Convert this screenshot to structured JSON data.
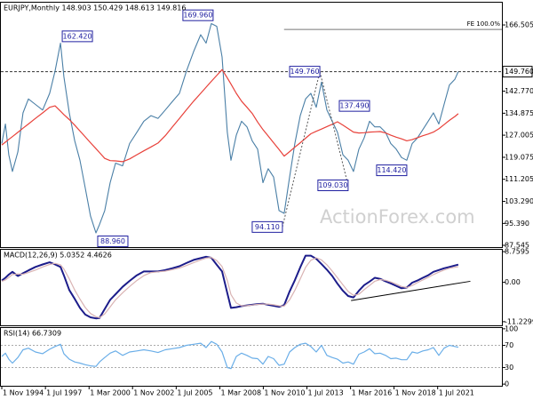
{
  "chart_data": [
    {
      "type": "line",
      "title": "EURJPY,Monthly 148.903 150.429 148.613 149.816",
      "watermark": "ActionForex.com",
      "x": [
        1994.83,
        1995.05,
        1995.26,
        1995.48,
        1995.81,
        1996.13,
        1996.46,
        1996.89,
        1997.33,
        1997.76,
        1998.09,
        1998.42,
        1998.63,
        1998.96,
        1999.29,
        1999.61,
        1999.94,
        2000.26,
        2000.59,
        2000.81,
        2001.13,
        2001.46,
        2001.79,
        2002.22,
        2002.65,
        2003.09,
        2003.52,
        2003.96,
        2004.39,
        2004.83,
        2005.26,
        2005.7,
        2006.13,
        2006.57,
        2007.0,
        2007.33,
        2007.65,
        2007.98,
        2008.31,
        2008.63,
        2008.85,
        2009.18,
        2009.5,
        2009.83,
        2010.15,
        2010.48,
        2010.81,
        2011.13,
        2011.46,
        2011.79,
        2012.11,
        2012.44,
        2012.76,
        2013.09,
        2013.42,
        2013.74,
        2014.07,
        2014.39,
        2014.72,
        2015.05,
        2015.37,
        2015.7,
        2016.02,
        2016.35,
        2016.68,
        2017.0,
        2017.33,
        2017.65,
        2017.98,
        2018.31,
        2018.63,
        2018.96,
        2019.29,
        2019.61,
        2019.94,
        2020.26,
        2020.59,
        2020.92,
        2021.24,
        2021.57,
        2021.89,
        2022.22,
        2022.55,
        2022.76
      ],
      "series": [
        {
          "color": "#4a7fa6",
          "values": [
            124,
            131,
            120,
            114,
            121,
            135,
            140,
            138,
            136,
            142,
            150,
            160,
            148,
            135,
            125,
            118,
            108,
            98,
            92,
            95,
            100,
            110,
            117,
            116,
            124,
            128,
            132,
            134,
            133,
            136,
            139,
            142,
            150,
            157,
            163,
            160,
            167,
            166,
            155,
            128,
            118,
            127,
            132,
            130,
            125,
            122,
            110,
            115,
            112,
            100,
            99,
            112,
            124,
            134,
            140,
            142,
            137,
            146,
            136,
            132,
            128,
            120,
            118,
            114,
            122,
            126,
            132,
            130,
            130,
            128,
            124,
            122,
            119,
            118,
            124,
            126,
            129,
            132,
            135,
            131,
            138,
            145,
            147,
            149.8
          ]
        },
        {
          "color": "#e8413a",
          "values": [
            123.5,
            124.5,
            125.5,
            126.5,
            128,
            129.5,
            131,
            133,
            135,
            137,
            137.5,
            135.6,
            134.4,
            132.6,
            130.6,
            128.5,
            126.4,
            124.3,
            122.2,
            120.8,
            118.7,
            117.9,
            117.8,
            117.5,
            118.5,
            120,
            121.4,
            122.8,
            124.2,
            126.8,
            129.9,
            133,
            136.1,
            139.2,
            142,
            144.2,
            146.3,
            148.4,
            150.5,
            147.5,
            145.3,
            142,
            139.2,
            137,
            134.8,
            131.7,
            129,
            126.7,
            124.3,
            121.9,
            119.5,
            121.1,
            122.7,
            124.3,
            125.9,
            127.5,
            128.4,
            129.2,
            130.1,
            130.9,
            131.8,
            130.6,
            129.4,
            128.1,
            127.8,
            127.9,
            128.1,
            128.2,
            128.3,
            127.8,
            127,
            126.3,
            125.7,
            125,
            125.4,
            126.1,
            126.8,
            127.4,
            128.1,
            129.3,
            130.8,
            132.3,
            133.7,
            134.7
          ]
        }
      ],
      "xlim": [
        1994.72,
        2025.43
      ],
      "ylim": [
        86.9,
        174.8
      ],
      "yticks": [
        166.505,
        {
          "value": 142.77,
          "label": "142.770"
        },
        134.875,
        127.005,
        119.075,
        111.205,
        {
          "value": 103.29,
          "label": "103.290"
        },
        {
          "value": 95.39,
          "label": "95.390"
        },
        87.545
      ],
      "current": {
        "value": 149.76,
        "label": "149.760"
      },
      "fe": {
        "label": "FE 100.0%",
        "value": 164.9,
        "x": 2012.1
      },
      "annotations": [
        {
          "label": "169.960",
          "value": 169.96,
          "x": 2007.76
        },
        {
          "label": "162.420",
          "value": 162.42,
          "x": 1998.42
        },
        {
          "label": "88.960",
          "value": 88.96,
          "x": 2000.59
        },
        {
          "label": "94.110",
          "value": 94.11,
          "x": 2012.0
        },
        {
          "label": "149.760",
          "value": 149.76,
          "x": 2014.29
        },
        {
          "label": "109.030",
          "value": 109.03,
          "x": 2016.02
        },
        {
          "label": "137.490",
          "value": 137.49,
          "x": 2017.33
        },
        {
          "label": "114.420",
          "value": 114.42,
          "x": 2019.61
        }
      ]
    },
    {
      "type": "line",
      "title": "MACD(12,26,9) 5.0352 4.4626",
      "series": [
        {
          "color": "#1c1c8a",
          "values": [
            0.5,
            1.3,
            2.2,
            3,
            1.8,
            2.6,
            3.4,
            4.4,
            5.1,
            5.7,
            5.1,
            4.4,
            2,
            -2.2,
            -4.7,
            -7.3,
            -9.2,
            -10,
            -10.3,
            -10.2,
            -7.6,
            -5,
            -3.4,
            -1.3,
            0.4,
            2,
            3.1,
            3.1,
            3.1,
            3.5,
            4,
            4.6,
            5.5,
            6.4,
            6.9,
            7.3,
            7,
            5,
            3.1,
            -3.1,
            -7.3,
            -7.1,
            -6.8,
            -6.6,
            -6.4,
            -6.2,
            -6.1,
            -6.4,
            -6.7,
            -7,
            -6.5,
            -2.6,
            0.6,
            4.3,
            7.6,
            7.6,
            6.7,
            5.2,
            3.6,
            1.8,
            -0.4,
            -2.4,
            -3.9,
            -4.3,
            -2.4,
            -0.8,
            0.2,
            1.3,
            1,
            0.3,
            -0.3,
            -1,
            -1.7,
            -1.5,
            -0.1,
            0.5,
            1.3,
            2,
            3,
            3.5,
            4,
            4.4,
            4.8,
            5.04
          ]
        },
        {
          "color": "#d9b3b3",
          "values": [
            0.3,
            0.7,
            1.4,
            2.2,
            2.4,
            2.3,
            2.8,
            3.5,
            4.4,
            5.1,
            5.4,
            5,
            3.8,
            1,
            -2.2,
            -4.8,
            -7.2,
            -8.9,
            -9.8,
            -10.1,
            -9,
            -7,
            -5,
            -3,
            -1.2,
            0.5,
            1.9,
            2.8,
            3,
            3.2,
            3.6,
            4.1,
            4.8,
            5.6,
            6.4,
            6.9,
            7.1,
            6.2,
            4.5,
            0.5,
            -3.5,
            -5.9,
            -6.7,
            -6.7,
            -6.5,
            -6.3,
            -6.2,
            -6.2,
            -6.4,
            -6.7,
            -6.8,
            -5,
            -2.3,
            1,
            4.3,
            6.3,
            7,
            6.4,
            5,
            3.2,
            1.3,
            -0.7,
            -2.6,
            -3.7,
            -3.4,
            -2.1,
            -0.9,
            0.3,
            0.8,
            0.6,
            0.1,
            -0.5,
            -1.2,
            -1.5,
            -0.9,
            -0.1,
            0.7,
            1.4,
            2.2,
            2.9,
            3.5,
            4,
            4.3,
            4.46
          ]
        }
      ],
      "ylim": [
        -12.27,
        9.54
      ],
      "yticks": [
        8.7595,
        {
          "value": 0,
          "label": "0.00"
        },
        -11.2299
      ],
      "trendline": {
        "x": [
          2016.2,
          2023.5
        ],
        "values": [
          -5.2,
          0.3
        ]
      }
    },
    {
      "type": "line",
      "title": "RSI(14) 66.7309",
      "series": [
        {
          "color": "#6aaee8",
          "values": [
            50,
            56,
            45,
            38,
            48,
            62,
            65,
            58,
            55,
            63,
            68,
            72,
            55,
            45,
            40,
            38,
            35,
            33,
            32,
            40,
            48,
            56,
            60,
            52,
            58,
            60,
            62,
            60,
            57,
            62,
            64,
            66,
            70,
            72,
            74,
            66,
            77,
            72,
            58,
            30,
            28,
            50,
            56,
            52,
            47,
            46,
            36,
            50,
            46,
            34,
            36,
            58,
            66,
            72,
            74,
            68,
            58,
            70,
            52,
            48,
            45,
            38,
            40,
            36,
            54,
            58,
            64,
            55,
            56,
            52,
            46,
            47,
            44,
            44,
            58,
            56,
            60,
            62,
            66,
            52,
            65,
            70,
            68,
            66.73
          ]
        }
      ],
      "ylim": [
        -3,
        103
      ],
      "yticks": [
        100,
        70,
        30,
        0
      ],
      "levels": [
        70,
        30
      ],
      "xticks": [
        {
          "value": 1994.83,
          "label": "1 Nov 1994"
        },
        {
          "value": 1997.5,
          "label": "1 Jul 1997"
        },
        {
          "value": 2000.17,
          "label": "1 Mar 2000"
        },
        {
          "value": 2002.83,
          "label": "1 Nov 2002"
        },
        {
          "value": 2005.5,
          "label": "1 Jul 2005"
        },
        {
          "value": 2008.17,
          "label": "1 Mar 2008"
        },
        {
          "value": 2010.83,
          "label": "1 Nov 2010"
        },
        {
          "value": 2013.5,
          "label": "1 Jul 2013"
        },
        {
          "value": 2016.17,
          "label": "1 Mar 2016"
        },
        {
          "value": 2018.83,
          "label": "1 Nov 2018"
        },
        {
          "value": 2021.5,
          "label": "1 Jul 2021"
        }
      ]
    }
  ]
}
